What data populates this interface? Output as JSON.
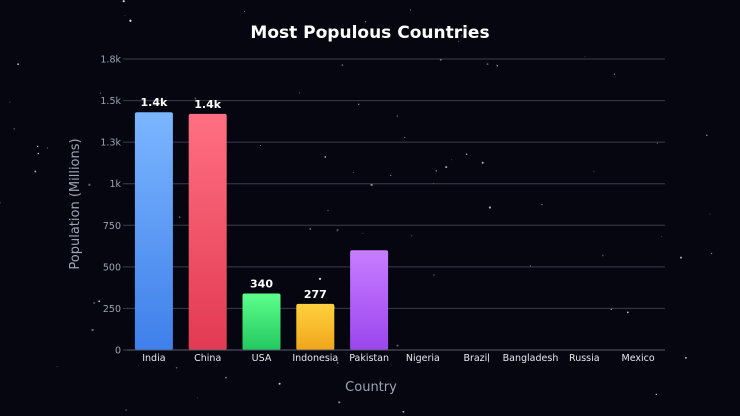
{
  "colors": {
    "background": "#05060f",
    "grid": "#3a3d4d",
    "text": "#ffffff",
    "muted": "#9ea3b5"
  },
  "chart_data": {
    "type": "bar",
    "title": "Most Populous Countries",
    "xlabel": "Country",
    "ylabel": "Population (Millions)",
    "ylim": [
      0,
      1750
    ],
    "yticks": [
      0,
      250,
      500,
      750,
      1000,
      1250,
      1500,
      1750
    ],
    "ytick_labels": [
      "0",
      "250",
      "500",
      "750",
      "1k",
      "1.3k",
      "1.5k",
      "1.8k"
    ],
    "grid": true,
    "categories": [
      "India",
      "China",
      "USA",
      "Indonesia",
      "Pakistan",
      "Nigeria",
      "Brazil",
      "Bangladesh",
      "Russia",
      "Mexico"
    ],
    "values": [
      1430,
      1420,
      340,
      277,
      600,
      null,
      null,
      null,
      null,
      null
    ],
    "data_labels": [
      "1.4k",
      "1.4k",
      "340",
      "277",
      null,
      null,
      null,
      null,
      null,
      null
    ],
    "bar_colors": [
      [
        "#7bb6ff",
        "#3f7fea"
      ],
      [
        "#ff6f82",
        "#e23a52"
      ],
      [
        "#5dff8c",
        "#22c95f"
      ],
      [
        "#ffd23e",
        "#f0a51c"
      ],
      [
        "#c77dff",
        "#9b46ee"
      ]
    ]
  }
}
